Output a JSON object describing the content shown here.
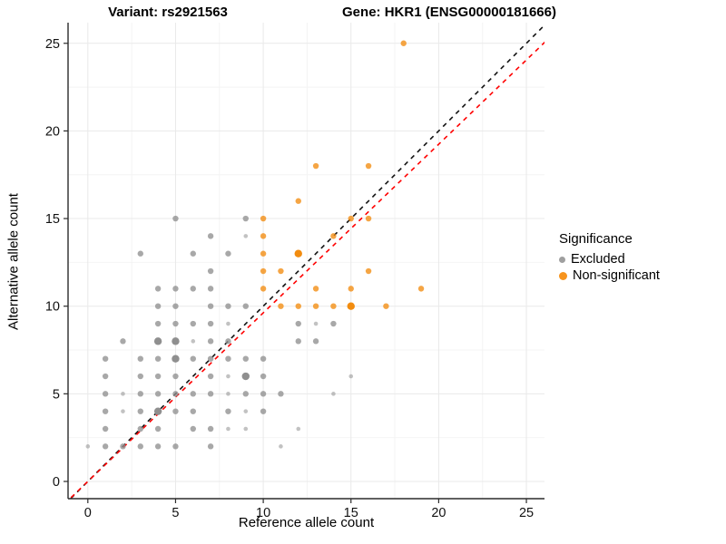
{
  "titles": {
    "variant": "Variant: rs2921563",
    "gene": "Gene: HKR1 (ENSG00000181666)"
  },
  "chart_data": {
    "type": "scatter",
    "title": "Variant: rs2921563 — Gene: HKR1 (ENSG00000181666)",
    "xlabel": "Reference allele count",
    "ylabel": "Alternative allele count",
    "xlim": [
      -1.2,
      26.2
    ],
    "ylim": [
      -1.1,
      26.3
    ],
    "x_ticks": [
      0,
      5,
      10,
      15,
      20,
      25
    ],
    "y_ticks": [
      0,
      5,
      10,
      15,
      20,
      25
    ],
    "minor_ticks": [
      2.5,
      7.5,
      12.5,
      17.5,
      22.5
    ],
    "grid": true,
    "legend": {
      "title": "Significance",
      "position": "right",
      "items": [
        {
          "label": "Excluded",
          "color": "#9f9f9f"
        },
        {
          "label": "Non-significant",
          "color": "#F7941E"
        }
      ]
    },
    "point_size_classes": {
      "s": {
        "r": 2.3,
        "opacity": 0.55
      },
      "m": {
        "r": 3.2,
        "opacity": 0.78
      },
      "l": {
        "r": 4.2,
        "opacity": 1.0
      }
    },
    "series": [
      {
        "name": "Excluded",
        "color": "#8f8f8f",
        "points": [
          [
            0,
            2,
            "s"
          ],
          [
            1,
            2,
            "m"
          ],
          [
            2,
            2,
            "m"
          ],
          [
            3,
            2,
            "m"
          ],
          [
            4,
            2,
            "m"
          ],
          [
            5,
            2,
            "m"
          ],
          [
            7,
            2,
            "m"
          ],
          [
            11,
            2,
            "s"
          ],
          [
            1,
            3,
            "m"
          ],
          [
            3,
            3,
            "m"
          ],
          [
            4,
            3,
            "m"
          ],
          [
            6,
            3,
            "m"
          ],
          [
            7,
            3,
            "m"
          ],
          [
            8,
            3,
            "s"
          ],
          [
            9,
            3,
            "s"
          ],
          [
            12,
            3,
            "s"
          ],
          [
            1,
            4,
            "m"
          ],
          [
            2,
            4,
            "s"
          ],
          [
            3,
            4,
            "m"
          ],
          [
            4,
            4,
            "l"
          ],
          [
            5,
            4,
            "m"
          ],
          [
            6,
            4,
            "m"
          ],
          [
            8,
            4,
            "m"
          ],
          [
            9,
            4,
            "s"
          ],
          [
            10,
            4,
            "m"
          ],
          [
            1,
            5,
            "m"
          ],
          [
            2,
            5,
            "s"
          ],
          [
            3,
            5,
            "m"
          ],
          [
            4,
            5,
            "m"
          ],
          [
            5,
            5,
            "m"
          ],
          [
            6,
            5,
            "m"
          ],
          [
            7,
            5,
            "m"
          ],
          [
            8,
            5,
            "s"
          ],
          [
            9,
            5,
            "m"
          ],
          [
            10,
            5,
            "m"
          ],
          [
            11,
            5,
            "m"
          ],
          [
            14,
            5,
            "s"
          ],
          [
            1,
            6,
            "m"
          ],
          [
            3,
            6,
            "m"
          ],
          [
            4,
            6,
            "m"
          ],
          [
            5,
            6,
            "m"
          ],
          [
            7,
            6,
            "m"
          ],
          [
            8,
            6,
            "s"
          ],
          [
            9,
            6,
            "l"
          ],
          [
            10,
            6,
            "m"
          ],
          [
            15,
            6,
            "s"
          ],
          [
            1,
            7,
            "m"
          ],
          [
            3,
            7,
            "m"
          ],
          [
            4,
            7,
            "m"
          ],
          [
            5,
            7,
            "l"
          ],
          [
            6,
            7,
            "m"
          ],
          [
            7,
            7,
            "m"
          ],
          [
            8,
            7,
            "m"
          ],
          [
            9,
            7,
            "m"
          ],
          [
            10,
            7,
            "m"
          ],
          [
            2,
            8,
            "m"
          ],
          [
            4,
            8,
            "l"
          ],
          [
            5,
            8,
            "l"
          ],
          [
            6,
            8,
            "s"
          ],
          [
            7,
            8,
            "m"
          ],
          [
            8,
            8,
            "m"
          ],
          [
            12,
            8,
            "m"
          ],
          [
            13,
            8,
            "m"
          ],
          [
            4,
            9,
            "m"
          ],
          [
            5,
            9,
            "m"
          ],
          [
            6,
            9,
            "m"
          ],
          [
            7,
            9,
            "m"
          ],
          [
            8,
            9,
            "s"
          ],
          [
            12,
            9,
            "m"
          ],
          [
            13,
            9,
            "s"
          ],
          [
            14,
            9,
            "m"
          ],
          [
            4,
            10,
            "m"
          ],
          [
            5,
            10,
            "m"
          ],
          [
            7,
            10,
            "m"
          ],
          [
            8,
            10,
            "m"
          ],
          [
            9,
            10,
            "m"
          ],
          [
            4,
            11,
            "m"
          ],
          [
            5,
            11,
            "m"
          ],
          [
            6,
            11,
            "m"
          ],
          [
            7,
            11,
            "m"
          ],
          [
            7,
            12,
            "m"
          ],
          [
            3,
            13,
            "m"
          ],
          [
            6,
            13,
            "m"
          ],
          [
            8,
            13,
            "m"
          ],
          [
            7,
            14,
            "m"
          ],
          [
            9,
            14,
            "s"
          ],
          [
            5,
            15,
            "m"
          ],
          [
            9,
            15,
            "m"
          ]
        ]
      },
      {
        "name": "Non-significant",
        "color": "#F28C0F",
        "points": [
          [
            11,
            10,
            "m"
          ],
          [
            12,
            10,
            "m"
          ],
          [
            13,
            10,
            "m"
          ],
          [
            14,
            10,
            "m"
          ],
          [
            15,
            10,
            "l"
          ],
          [
            17,
            10,
            "m"
          ],
          [
            10,
            11,
            "m"
          ],
          [
            13,
            11,
            "m"
          ],
          [
            15,
            11,
            "m"
          ],
          [
            19,
            11,
            "m"
          ],
          [
            10,
            12,
            "m"
          ],
          [
            11,
            12,
            "m"
          ],
          [
            16,
            12,
            "m"
          ],
          [
            10,
            13,
            "m"
          ],
          [
            12,
            13,
            "l"
          ],
          [
            10,
            14,
            "m"
          ],
          [
            14,
            14,
            "m"
          ],
          [
            10,
            15,
            "m"
          ],
          [
            15,
            15,
            "m"
          ],
          [
            16,
            15,
            "m"
          ],
          [
            12,
            16,
            "m"
          ],
          [
            13,
            18,
            "m"
          ],
          [
            16,
            18,
            "m"
          ],
          [
            18,
            25,
            "m"
          ]
        ]
      }
    ],
    "lines": [
      {
        "name": "identity-line",
        "color": "#111111",
        "style": "dashed",
        "slope": 1.0,
        "intercept": 0
      },
      {
        "name": "fit-line",
        "color": "#FF0000",
        "style": "dashed",
        "slope": 0.962,
        "intercept": 0
      }
    ]
  }
}
